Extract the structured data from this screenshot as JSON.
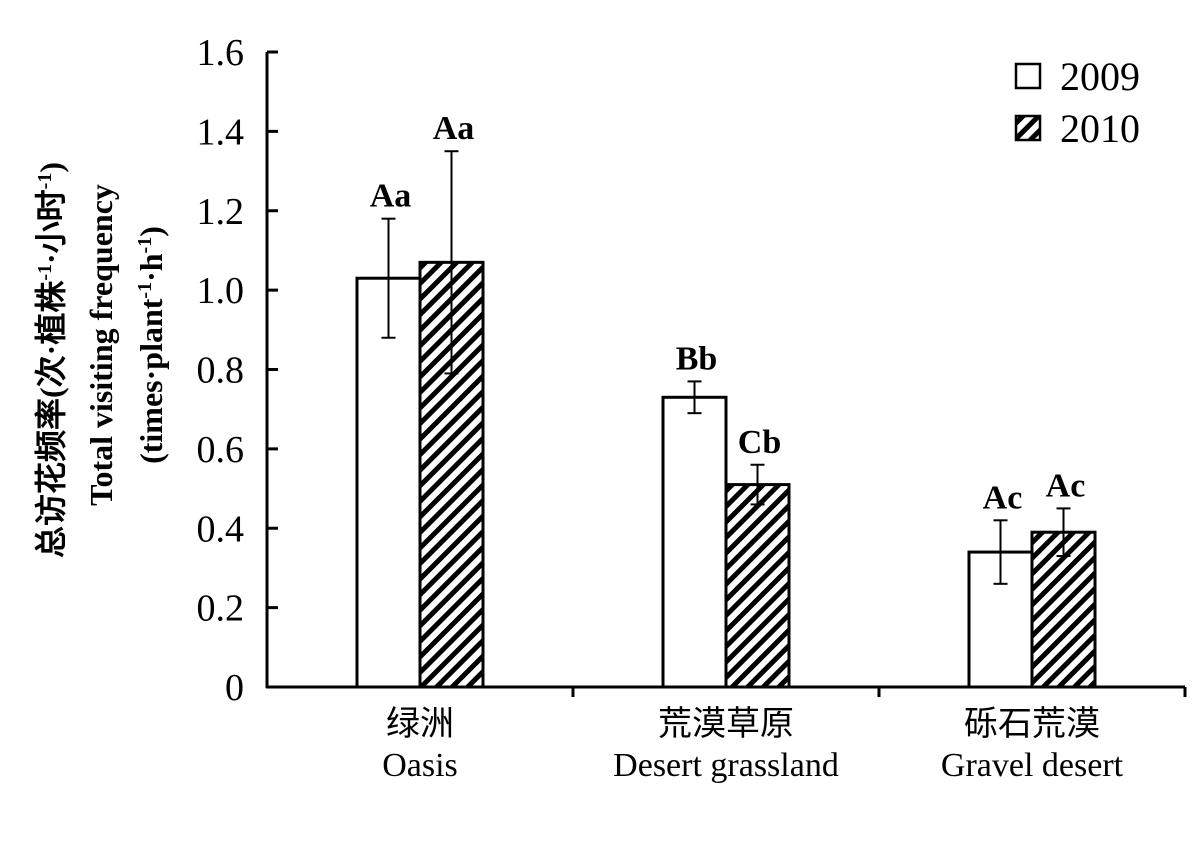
{
  "chart_data": {
    "type": "bar",
    "categories": [
      {
        "zh": "绿洲",
        "en": "Oasis"
      },
      {
        "zh": "荒漠草原",
        "en": "Desert grassland"
      },
      {
        "zh": "砾石荒漠",
        "en": "Gravel desert"
      }
    ],
    "series": [
      {
        "name": "2009",
        "style": "open",
        "values": [
          1.03,
          0.73,
          0.34
        ],
        "errors": [
          0.15,
          0.04,
          0.08
        ],
        "significance": [
          "Aa",
          "Bb",
          "Ac"
        ]
      },
      {
        "name": "2010",
        "style": "hatched",
        "values": [
          1.07,
          0.51,
          0.39
        ],
        "errors": [
          0.28,
          0.05,
          0.06
        ],
        "significance": [
          "Aa",
          "Cb",
          "Ac"
        ]
      }
    ],
    "ylabel": {
      "line1": "总访花频率(次·植株",
      "line2": "Total visiting frequency",
      "line3": "(times·plant"
    },
    "ylim": [
      0,
      1.6
    ],
    "yticks": [
      "0",
      "0.2",
      "0.4",
      "0.6",
      "0.8",
      "1.0",
      "1.2",
      "1.4",
      "1.6"
    ],
    "legend_position": "top-right",
    "grid": false,
    "colors": {
      "axis": "#000000",
      "bar_fill": "#ffffff",
      "hatch": "#000000"
    }
  }
}
